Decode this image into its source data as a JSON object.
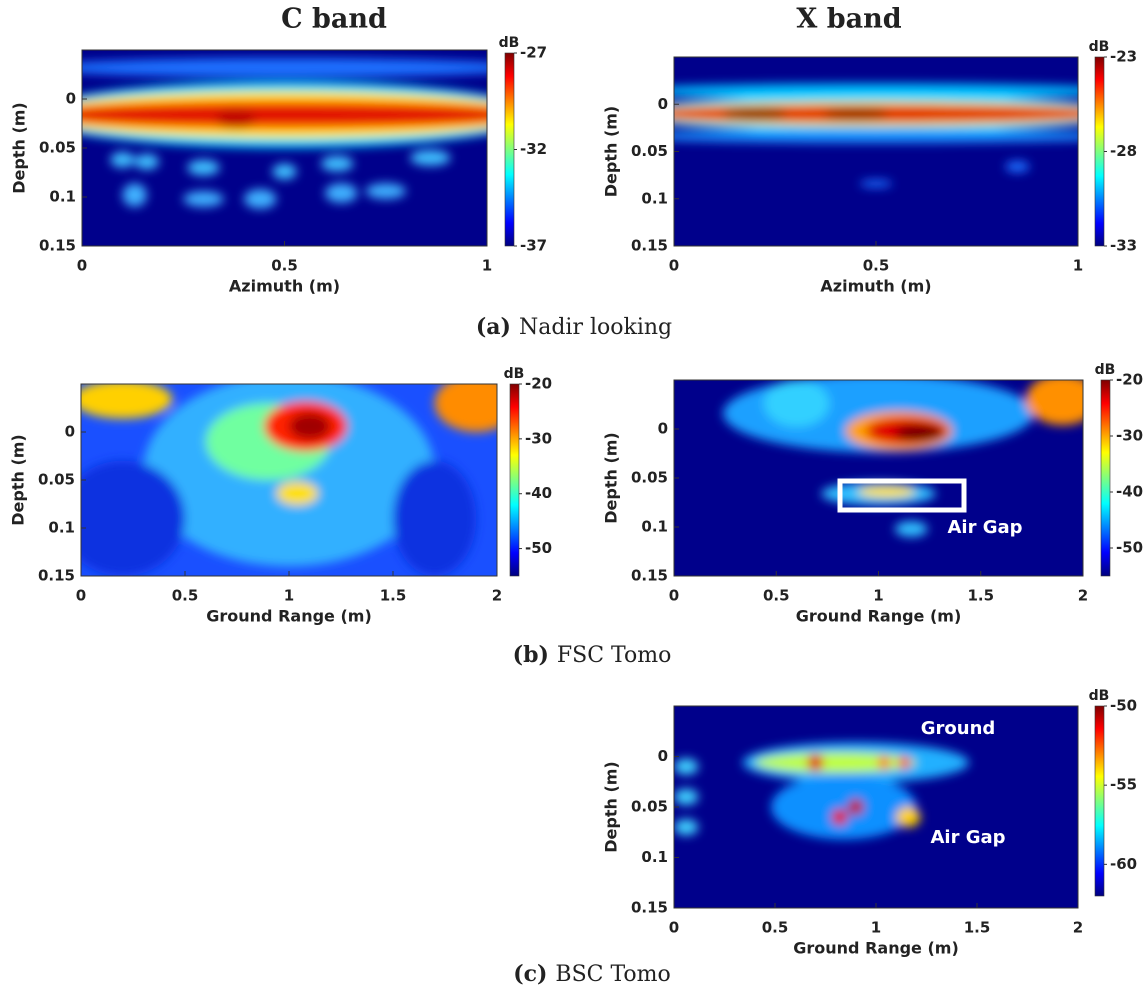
{
  "column_titles": [
    "C band",
    "X band"
  ],
  "panels": [
    {
      "xlabel": "Azimuth (m)",
      "ylabel": "Depth (m)",
      "xlim": [
        0,
        1
      ],
      "ylim": [
        -0.05,
        0.15
      ],
      "xticks": [
        0,
        0.5,
        1
      ],
      "yticks": [
        0,
        0.05,
        0.1,
        0.15
      ],
      "colorbar": {
        "label": "dB",
        "lim": [
          -37,
          -27
        ],
        "ticks": [
          -27,
          -32,
          -37
        ]
      },
      "annotations": []
    },
    {
      "xlabel": "Azimuth (m)",
      "ylabel": "Depth (m)",
      "xlim": [
        0,
        1
      ],
      "ylim": [
        -0.05,
        0.15
      ],
      "xticks": [
        0,
        0.5,
        1
      ],
      "yticks": [
        0,
        0.05,
        0.1,
        0.15
      ],
      "colorbar": {
        "label": "dB",
        "lim": [
          -33,
          -23
        ],
        "ticks": [
          -23,
          -28,
          -33
        ]
      },
      "annotations": []
    },
    {
      "xlabel": "Ground Range (m)",
      "ylabel": "Depth (m)",
      "xlim": [
        0,
        2
      ],
      "ylim": [
        -0.05,
        0.15
      ],
      "xticks": [
        0,
        0.5,
        1,
        1.5,
        2
      ],
      "yticks": [
        0,
        0.05,
        0.1,
        0.15
      ],
      "colorbar": {
        "label": "dB",
        "lim": [
          -55,
          -20
        ],
        "ticks": [
          -20,
          -30,
          -40,
          -50
        ]
      },
      "annotations": []
    },
    {
      "xlabel": "Ground Range (m)",
      "ylabel": "Depth (m)",
      "xlim": [
        0,
        2
      ],
      "ylim": [
        -0.05,
        0.15
      ],
      "xticks": [
        0,
        0.5,
        1,
        1.5,
        2
      ],
      "yticks": [
        0,
        0.05,
        0.1,
        0.15
      ],
      "colorbar": {
        "label": "dB",
        "lim": [
          -55,
          -20
        ],
        "ticks": [
          -20,
          -30,
          -40,
          -50
        ]
      },
      "annotations": [
        "Air Gap"
      ]
    },
    {
      "xlabel": "Ground Range (m)",
      "ylabel": "Depth (m)",
      "xlim": [
        0,
        2
      ],
      "ylim": [
        -0.05,
        0.15
      ],
      "xticks": [
        0,
        0.5,
        1,
        1.5,
        2
      ],
      "yticks": [
        0,
        0.05,
        0.1,
        0.15
      ],
      "colorbar": {
        "label": "dB",
        "lim": [
          -62,
          -50
        ],
        "ticks": [
          -50,
          -55,
          -60
        ]
      },
      "annotations": [
        "Ground",
        "Air Gap"
      ]
    }
  ],
  "captions": [
    {
      "tag": "(a)",
      "text": "Nadir looking"
    },
    {
      "tag": "(b)",
      "text": "FSC Tomo"
    },
    {
      "tag": "(c)",
      "text": "BSC Tomo"
    }
  ]
}
